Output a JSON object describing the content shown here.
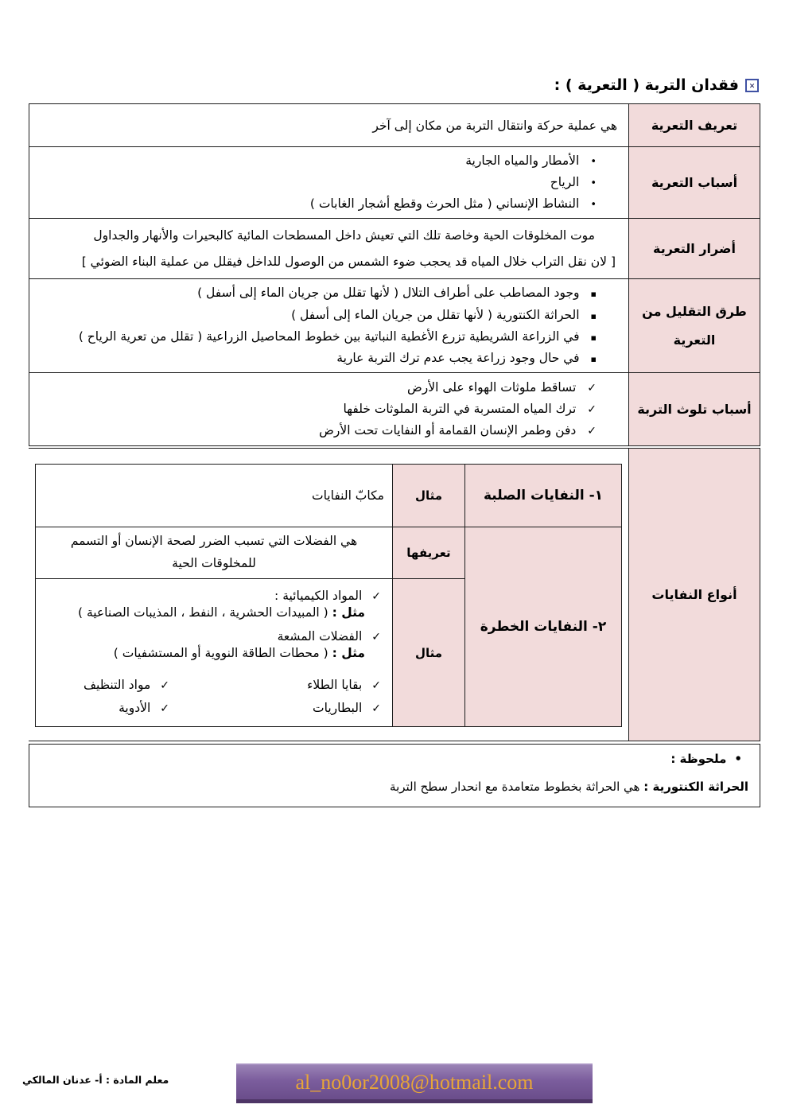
{
  "icons": {
    "boxed_x": "✕",
    "bullet": "•",
    "square_bullet": "▪",
    "check": "✓"
  },
  "page": {
    "title": "فقدان التربة ( التعرية ) :"
  },
  "table": {
    "rows": [
      {
        "header": "تعريف التعرية",
        "text": "هي عملية حركة وانتقال التربة من مكان إلى آخر"
      },
      {
        "header": "أسباب التعرية",
        "items": [
          "الأمطار والمياه الجارية",
          "الرياح",
          "النشاط الإنساني ( مثل الحرث وقطع أشجار الغابات )"
        ]
      },
      {
        "header": "أضرار التعرية",
        "line1": "موت المخلوقات الحية وخاصة تلك التي تعيش داخل المسطحات المائية كالبحيرات والأنهار والجداول",
        "line2": "[ لان نقل التراب خلال المياه قد يحجب ضوء الشمس من الوصول للداخل فيقلل من عملية البناء الضوئي ]"
      },
      {
        "header": "طرق التقليل من التعرية",
        "items": [
          "وجود المصاطب على أطراف التلال ( لأنها تقلل من جريان الماء إلى أسفل )",
          "الحراثة الكنتورية ( لأنها تقلل من جريان الماء إلى أسفل )",
          "في الزراعة الشريطية تزرع الأغطية النباتية بين خطوط المحاصيل الزراعية ( تقلل من تعرية الرياح )",
          "في حال وجود زراعة يجب عدم ترك التربة عارية"
        ]
      },
      {
        "header": "أسباب تلوث التربة",
        "items": [
          "تساقط ملوثات الهواء على الأرض",
          "ترك المياه المتسربة في التربة الملوثات خلفها",
          "دفن وطمر الإنسان القمامة أو النفايات تحت الأرض"
        ]
      }
    ]
  },
  "waste": {
    "header": "أنواع النفايات",
    "solid": {
      "title": "١- النفايات الصلبة",
      "example_label": "مثال",
      "example": "مكابّ النفايات"
    },
    "hazard": {
      "title": "٢- النفايات الخطرة",
      "definition_label": "تعريفها",
      "definition": "هي الفضلات التي تسبب الضرر لصحة الإنسان أو التسمم للمخلوقات الحية",
      "example_label": "مثال",
      "chem_item": "المواد الكيميائية :",
      "chem_example_label": "مثل :",
      "chem_example": "( المبيدات الحشرية ، النفط ، المذيبات الصناعية )",
      "rad_item": "الفضلات المشعة",
      "rad_example_label": "مثل :",
      "rad_example": "( محطات الطاقة النووية أو المستشفيات )",
      "checklist_right": [
        "بقايا الطلاء",
        "البطاريات"
      ],
      "checklist_left": [
        "مواد التنظيف",
        "الأدوية"
      ]
    }
  },
  "note": {
    "label": "ملحوظة :",
    "term": "الحراثة الكنتورية :",
    "definition": "هي الحراثة بخطوط متعامدة مع انحدار سطح التربة"
  },
  "footer": {
    "teacher": "معلم المادة : أ- عدنان المالكي",
    "email": "al_no0or2008@hotmail.com"
  },
  "colors": {
    "header_pink": "#F2DBDB",
    "purple_bar": "#7B5D9D",
    "email_gold": "#E8A637",
    "border": "#1C1C1C"
  }
}
